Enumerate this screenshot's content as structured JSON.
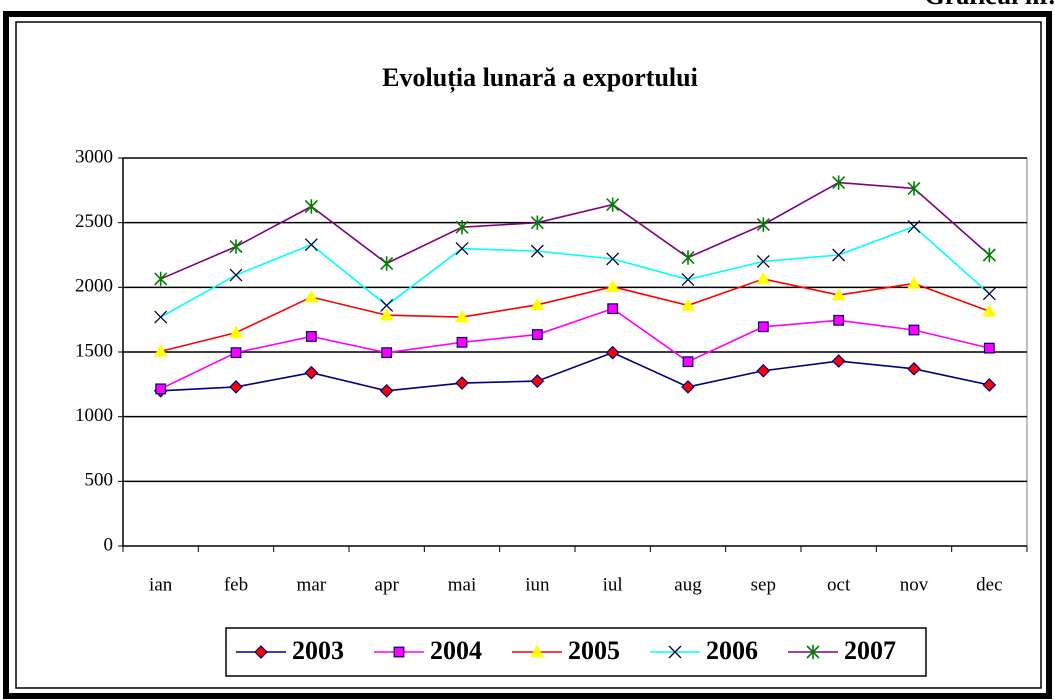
{
  "chart_data": {
    "type": "line",
    "title": "Evoluția lunară a exportului",
    "corner_label": "Graficul nr.",
    "categories": [
      "ian",
      "feb",
      "mar",
      "apr",
      "mai",
      "iun",
      "iul",
      "aug",
      "sep",
      "oct",
      "nov",
      "dec"
    ],
    "series": [
      {
        "name": "2003",
        "color": "#000080",
        "marker": "diamond",
        "marker_color": "#ff0000",
        "values": [
          1200,
          1230,
          1340,
          1200,
          1260,
          1275,
          1495,
          1230,
          1355,
          1430,
          1370,
          1245
        ]
      },
      {
        "name": "2004",
        "color": "#ff00ff",
        "marker": "square",
        "marker_color": "#ff00ff",
        "values": [
          1215,
          1495,
          1620,
          1495,
          1575,
          1635,
          1835,
          1425,
          1695,
          1745,
          1670,
          1530
        ]
      },
      {
        "name": "2005",
        "color": "#ff0000",
        "marker": "triangle",
        "marker_color": "#ffff00",
        "values": [
          1505,
          1650,
          1925,
          1785,
          1770,
          1865,
          2005,
          1860,
          2065,
          1940,
          2030,
          1815
        ]
      },
      {
        "name": "2006",
        "color": "#00ffff",
        "marker": "x",
        "marker_color": "#000040",
        "values": [
          1770,
          2095,
          2330,
          1860,
          2300,
          2280,
          2220,
          2060,
          2200,
          2250,
          2470,
          1950
        ]
      },
      {
        "name": "2007",
        "color": "#800080",
        "marker": "star",
        "marker_color": "#008000",
        "values": [
          2065,
          2315,
          2625,
          2185,
          2465,
          2500,
          2640,
          2230,
          2485,
          2810,
          2765,
          2250
        ]
      }
    ],
    "ylim": [
      0,
      3000
    ],
    "yticks": [
      0,
      500,
      1000,
      1500,
      2000,
      2500,
      3000
    ],
    "grid": true,
    "legend": "bottom"
  }
}
